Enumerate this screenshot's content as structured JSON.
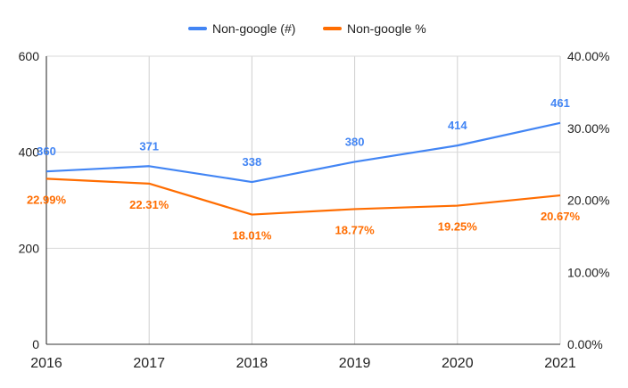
{
  "chart_data": {
    "type": "line",
    "title": "",
    "categories": [
      "2016",
      "2017",
      "2018",
      "2019",
      "2020",
      "2021"
    ],
    "series": [
      {
        "name": "Non-google (#)",
        "axis": "left",
        "color": "#4285f4",
        "values": [
          360,
          371,
          338,
          380,
          414,
          461
        ],
        "labels": [
          "360",
          "371",
          "338",
          "380",
          "414",
          "461"
        ]
      },
      {
        "name": "Non-google %",
        "axis": "right",
        "color": "#ff6d01",
        "values": [
          22.99,
          22.31,
          18.01,
          18.77,
          19.25,
          20.67
        ],
        "labels": [
          "22.99%",
          "22.31%",
          "18.01%",
          "18.77%",
          "19.25%",
          "20.67%"
        ]
      }
    ],
    "left_axis": {
      "ylim": [
        0,
        600
      ],
      "ticks": [
        "0",
        "200",
        "400",
        "600"
      ]
    },
    "right_axis": {
      "ylim": [
        0,
        40
      ],
      "ticks": [
        "0.00%",
        "10.00%",
        "20.00%",
        "30.00%",
        "40.00%"
      ]
    },
    "grid": true,
    "legend": "top"
  }
}
